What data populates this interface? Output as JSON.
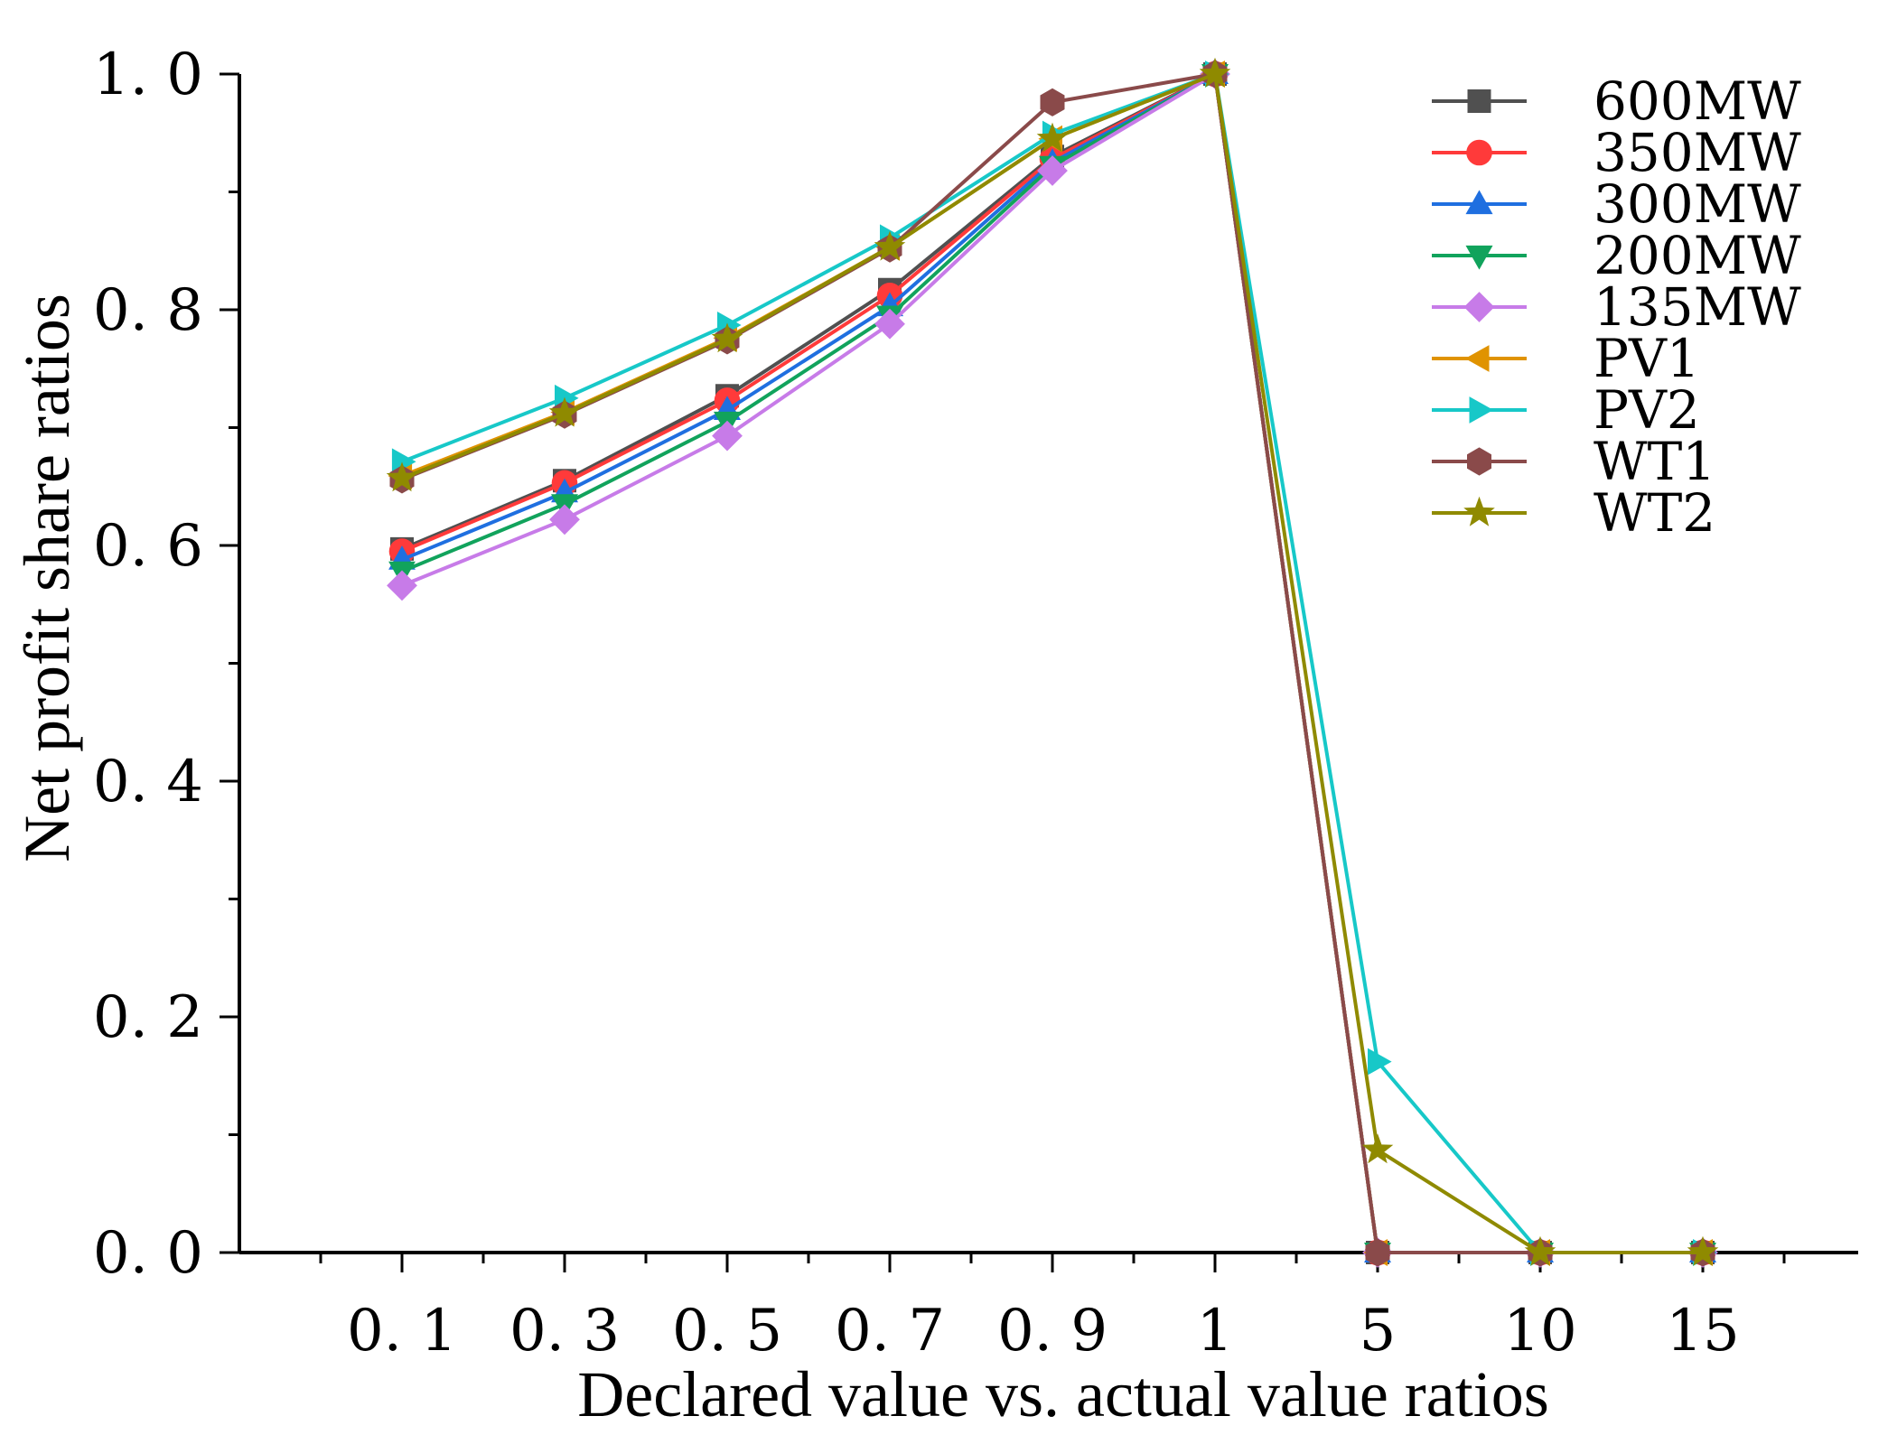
{
  "chart_data": {
    "type": "line",
    "xlabel": "Declared value vs. actual value ratios",
    "ylabel": "Net profit share ratios",
    "categories": [
      "0. 1",
      "0. 3",
      "0. 5",
      "0. 7",
      "0. 9",
      "1",
      "5",
      "10",
      "15"
    ],
    "yticks": [
      "0. 0",
      "0. 2",
      "0. 4",
      "0. 6",
      "0. 8",
      "1. 0"
    ],
    "ylim": [
      0,
      1
    ],
    "legend_position": "top-right",
    "series": [
      {
        "name": "600MW",
        "color": "#505050",
        "marker": "square",
        "values": [
          0.597,
          0.655,
          0.727,
          0.817,
          0.93,
          1.0,
          0.0,
          0.0,
          0.0
        ]
      },
      {
        "name": "350MW",
        "color": "#ff3a3a",
        "marker": "circle",
        "values": [
          0.595,
          0.653,
          0.723,
          0.812,
          0.928,
          1.0,
          0.0,
          0.0,
          0.0
        ]
      },
      {
        "name": "300MW",
        "color": "#1f6fe0",
        "marker": "triangle-up",
        "values": [
          0.588,
          0.645,
          0.715,
          0.803,
          0.925,
          1.0,
          0.0,
          0.0,
          0.0
        ]
      },
      {
        "name": "200MW",
        "color": "#11a35c",
        "marker": "triangle-down",
        "values": [
          0.578,
          0.635,
          0.705,
          0.795,
          0.922,
          1.0,
          0.0,
          0.0,
          0.0
        ]
      },
      {
        "name": "135MW",
        "color": "#c77be8",
        "marker": "diamond",
        "values": [
          0.566,
          0.622,
          0.693,
          0.788,
          0.918,
          1.0,
          0.0,
          0.0,
          0.0
        ]
      },
      {
        "name": "PV1",
        "color": "#e09300",
        "marker": "triangle-left",
        "values": [
          0.659,
          0.713,
          0.776,
          0.853,
          0.945,
          1.0,
          0.0,
          0.0,
          0.0
        ]
      },
      {
        "name": "PV2",
        "color": "#17c8c8",
        "marker": "triangle-right",
        "values": [
          0.671,
          0.725,
          0.787,
          0.861,
          0.949,
          1.0,
          0.162,
          0.0,
          0.0
        ]
      },
      {
        "name": "WT1",
        "color": "#8a4a4a",
        "marker": "hexagon",
        "values": [
          0.656,
          0.711,
          0.774,
          0.852,
          0.976,
          1.0,
          0.0,
          0.0,
          0.0
        ]
      },
      {
        "name": "WT2",
        "color": "#8f8a00",
        "marker": "star",
        "values": [
          0.657,
          0.712,
          0.775,
          0.853,
          0.945,
          1.0,
          0.087,
          0.0,
          0.0
        ]
      }
    ]
  }
}
